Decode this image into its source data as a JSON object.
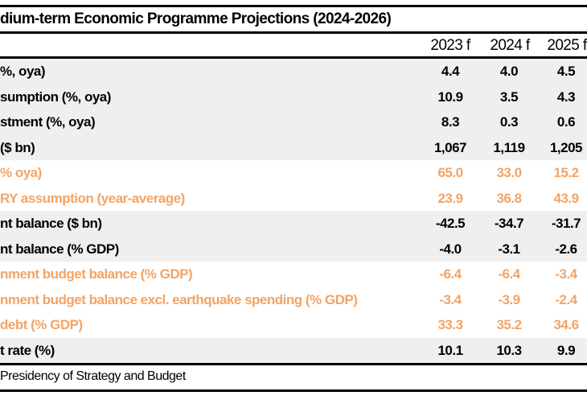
{
  "title": "dium-term Economic Programme Projections (2024-2026)",
  "columns": [
    "2023 f",
    "2024 f",
    "2025 f"
  ],
  "rows": [
    {
      "label": "%, oya)",
      "values": [
        "4.4",
        "4.0",
        "4.5"
      ],
      "style": "gray"
    },
    {
      "label": "sumption (%, oya)",
      "values": [
        "10.9",
        "3.5",
        "4.3"
      ],
      "style": "gray"
    },
    {
      "label": "stment (%, oya)",
      "values": [
        "8.3",
        "0.3",
        "0.6"
      ],
      "style": "gray"
    },
    {
      "label": "($ bn)",
      "values": [
        "1,067",
        "1,119",
        "1,205"
      ],
      "style": "gray"
    },
    {
      "label": " % oya)",
      "values": [
        "65.0",
        "33.0",
        "15.2"
      ],
      "style": "orange"
    },
    {
      "label": "RY assumption (year-average)",
      "values": [
        "23.9",
        "36.8",
        "43.9"
      ],
      "style": "orange"
    },
    {
      "label": "nt balance ($ bn)",
      "values": [
        "-42.5",
        "-34.7",
        "-31.7"
      ],
      "style": "gray"
    },
    {
      "label": "nt balance (% GDP)",
      "values": [
        "-4.0",
        "-3.1",
        "-2.6"
      ],
      "style": "gray"
    },
    {
      "label": "nment budget balance (% GDP)",
      "values": [
        "-6.4",
        "-6.4",
        "-3.4"
      ],
      "style": "orange"
    },
    {
      "label": "nment budget balance excl. earthquake spending (% GDP)",
      "values": [
        "-3.4",
        "-3.9",
        "-2.4"
      ],
      "style": "orange"
    },
    {
      "label": "debt (% GDP)",
      "values": [
        "33.3",
        "35.2",
        "34.6"
      ],
      "style": "orange"
    },
    {
      "label": "t rate (%)",
      "values": [
        "10.1",
        "10.3",
        "9.9"
      ],
      "style": "gray"
    }
  ],
  "source": "Presidency of Strategy and Budget",
  "colors": {
    "orange_text": "#f2a466",
    "gray_band": "#efefef"
  }
}
